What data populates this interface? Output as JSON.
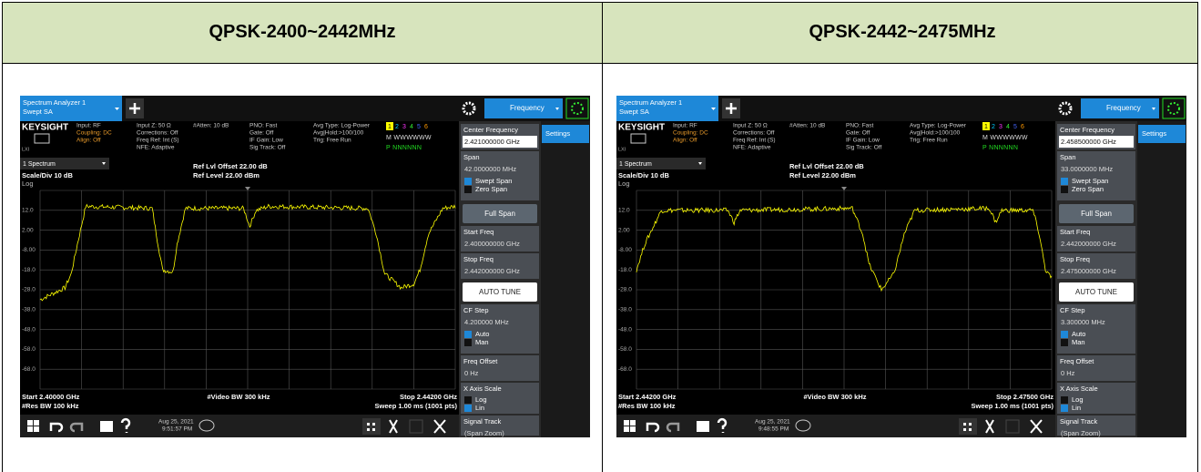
{
  "header": [
    "QPSK-2400~2442MHz",
    "QPSK-2442~2475MHz"
  ],
  "panels": [
    {
      "tab": [
        "Spectrum Analyzer 1",
        "Swept SA"
      ],
      "mode": "Frequency",
      "brand": "KEYSIGHT",
      "lxi": "LXI",
      "info": [
        [
          "Input: RF",
          "Coupling: DC",
          "Align: Off"
        ],
        [
          "Input Z: 50 Ω",
          "Corrections: Off",
          "Freq Ref: Int (S)",
          "NFE: Adaptive"
        ],
        [
          "#Atten: 10 dB"
        ],
        [
          "PNO: Fast",
          "Gate: Off",
          "IF Gain: Low",
          "Sig Track: Off"
        ],
        [
          "Avg Type: Log-Power",
          "Avg|Hold:>100/100",
          "Trig: Free Run"
        ]
      ],
      "traces": [
        "1",
        "2",
        "3",
        "4",
        "5",
        "6"
      ],
      "trace_rows": [
        "M WWWWWW",
        "P NNNNNN"
      ],
      "window": "1 Spectrum",
      "scale": "Scale/Div 10 dB",
      "log": "Log",
      "ref_offset": "Ref Lvl Offset 22.00 dB",
      "ref_level": "Ref Level 22.00 dBm",
      "yticks": [
        "12.0",
        "2.00",
        "-8.00",
        "-18.0",
        "-28.0",
        "-38.0",
        "-48.0",
        "-58.0",
        "-68.0"
      ],
      "start": "Start 2.40000 GHz",
      "video_bw": "#Video BW 300 kHz",
      "stop": "Stop 2.44200 GHz",
      "res_bw": "#Res BW 100 kHz",
      "sweep": "Sweep 1.00 ms (1001 pts)",
      "date": "Aug 25, 2021",
      "time": "9:51:57 PM",
      "settings": "Settings",
      "sidebar": [
        {
          "type": "value",
          "label": "Center Frequency",
          "value": "2.421000000 GHz",
          "emphasis": true
        },
        {
          "type": "radio",
          "label": "Span",
          "value": "42.0000000 MHz",
          "options": [
            "Swept Span",
            "Zero Span"
          ],
          "selected": 0
        },
        {
          "type": "button",
          "label": "Full Span"
        },
        {
          "type": "value",
          "label": "Start Freq",
          "value": "2.400000000 GHz"
        },
        {
          "type": "value",
          "label": "Stop Freq",
          "value": "2.442000000 GHz"
        },
        {
          "type": "button",
          "label": "AUTO TUNE",
          "emphasis": true
        },
        {
          "type": "radio",
          "label": "CF Step",
          "value": "4.200000 MHz",
          "options": [
            "Auto",
            "Man"
          ],
          "selected": 0
        },
        {
          "type": "value",
          "label": "Freq Offset",
          "value": "0 Hz"
        },
        {
          "type": "radio",
          "label": "X Axis Scale",
          "options": [
            "Log",
            "Lin"
          ],
          "selected": 1
        },
        {
          "type": "value",
          "label": "Signal Track",
          "value": "(Span Zoom)"
        }
      ]
    },
    {
      "tab": [
        "Spectrum Analyzer 1",
        "Swept SA"
      ],
      "mode": "Frequency",
      "brand": "KEYSIGHT",
      "lxi": "LXI",
      "info": [
        [
          "Input: RF",
          "Coupling: DC",
          "Align: Off"
        ],
        [
          "Input Z: 50 Ω",
          "Corrections: Off",
          "Freq Ref: Int (S)",
          "NFE: Adaptive"
        ],
        [
          "#Atten: 10 dB"
        ],
        [
          "PNO: Fast",
          "Gate: Off",
          "IF Gain: Low",
          "Sig Track: Off"
        ],
        [
          "Avg Type: Log-Power",
          "Avg|Hold:>100/100",
          "Trig: Free Run"
        ]
      ],
      "traces": [
        "1",
        "2",
        "3",
        "4",
        "5",
        "6"
      ],
      "trace_rows": [
        "M WWWWWW",
        "P NNNNNN"
      ],
      "window": "1 Spectrum",
      "scale": "Scale/Div 10 dB",
      "log": "Log",
      "ref_offset": "Ref Lvl Offset 22.00 dB",
      "ref_level": "Ref Level 22.00 dBm",
      "yticks": [
        "12.0",
        "2.00",
        "-8.00",
        "-18.0",
        "-28.0",
        "-38.0",
        "-48.0",
        "-58.0",
        "-68.0"
      ],
      "start": "Start 2.44200 GHz",
      "video_bw": "#Video BW 300 kHz",
      "stop": "Stop 2.47500 GHz",
      "res_bw": "#Res BW 100 kHz",
      "sweep": "Sweep 1.00 ms (1001 pts)",
      "date": "Aug 25, 2021",
      "time": "9:48:55 PM",
      "settings": "Settings",
      "sidebar": [
        {
          "type": "value",
          "label": "Center Frequency",
          "value": "2.458500000 GHz",
          "emphasis": true
        },
        {
          "type": "radio",
          "label": "Span",
          "value": "33.0000000 MHz",
          "options": [
            "Swept Span",
            "Zero Span"
          ],
          "selected": 0
        },
        {
          "type": "button",
          "label": "Full Span"
        },
        {
          "type": "value",
          "label": "Start Freq",
          "value": "2.442000000 GHz"
        },
        {
          "type": "value",
          "label": "Stop Freq",
          "value": "2.475000000 GHz"
        },
        {
          "type": "button",
          "label": "AUTO TUNE",
          "emphasis": true
        },
        {
          "type": "radio",
          "label": "CF Step",
          "value": "3.300000 MHz",
          "options": [
            "Auto",
            "Man"
          ],
          "selected": 0
        },
        {
          "type": "value",
          "label": "Freq Offset",
          "value": "0 Hz"
        },
        {
          "type": "radio",
          "label": "X Axis Scale",
          "options": [
            "Log",
            "Lin"
          ],
          "selected": 1
        },
        {
          "type": "value",
          "label": "Signal Track",
          "value": "(Span Zoom)"
        }
      ]
    }
  ]
}
